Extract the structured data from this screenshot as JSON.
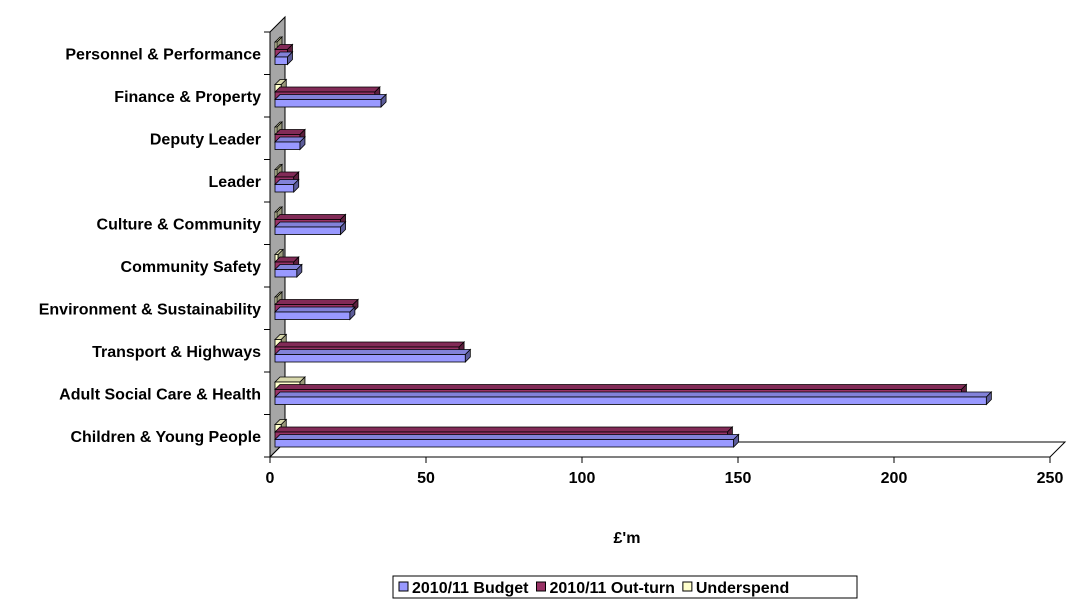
{
  "chart_data": {
    "type": "bar",
    "orientation": "horizontal",
    "style": "3d",
    "categories": [
      "Personnel & Performance",
      "Finance & Property",
      "Deputy Leader",
      "Leader",
      "Culture & Community",
      "Community Safety",
      "Environment & Sustainability",
      "Transport & Highways",
      "Adult Social Care & Health",
      "Children & Young People"
    ],
    "series": [
      {
        "name": "2010/11 Budget",
        "color": "#9999ff",
        "values": [
          4,
          34,
          8,
          6,
          21,
          7,
          24,
          61,
          228,
          147
        ]
      },
      {
        "name": "2010/11 Out-turn",
        "color": "#993366",
        "values": [
          4,
          32,
          8,
          6,
          21,
          6,
          25,
          59,
          220,
          145
        ]
      },
      {
        "name": "Underspend",
        "color": "#ffffcc",
        "values": [
          0,
          2,
          0,
          0,
          0,
          1,
          0,
          2,
          8,
          2
        ]
      }
    ],
    "xlim": [
      0,
      250
    ],
    "xticks": [
      0,
      50,
      100,
      150,
      200,
      250
    ],
    "xlabel": "£'m",
    "ylabel": "",
    "title": "",
    "grid": false,
    "legend_position": "bottom"
  }
}
